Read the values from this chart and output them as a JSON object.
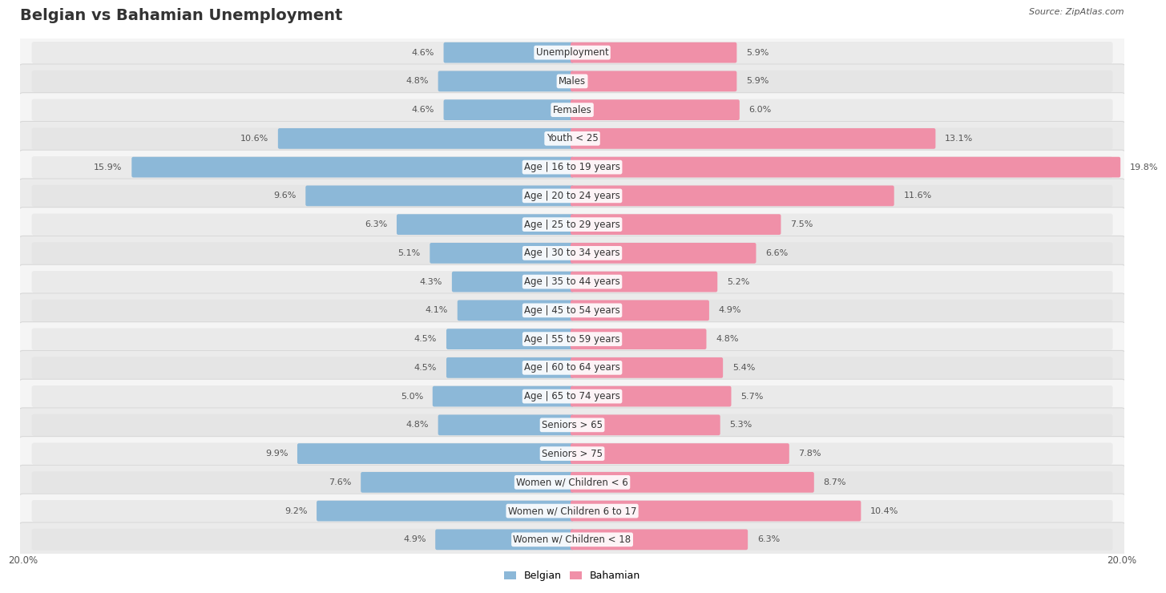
{
  "title": "Belgian vs Bahamian Unemployment",
  "source": "Source: ZipAtlas.com",
  "categories": [
    "Unemployment",
    "Males",
    "Females",
    "Youth < 25",
    "Age | 16 to 19 years",
    "Age | 20 to 24 years",
    "Age | 25 to 29 years",
    "Age | 30 to 34 years",
    "Age | 35 to 44 years",
    "Age | 45 to 54 years",
    "Age | 55 to 59 years",
    "Age | 60 to 64 years",
    "Age | 65 to 74 years",
    "Seniors > 65",
    "Seniors > 75",
    "Women w/ Children < 6",
    "Women w/ Children 6 to 17",
    "Women w/ Children < 18"
  ],
  "belgian_values": [
    4.6,
    4.8,
    4.6,
    10.6,
    15.9,
    9.6,
    6.3,
    5.1,
    4.3,
    4.1,
    4.5,
    4.5,
    5.0,
    4.8,
    9.9,
    7.6,
    9.2,
    4.9
  ],
  "bahamian_values": [
    5.9,
    5.9,
    6.0,
    13.1,
    19.8,
    11.6,
    7.5,
    6.6,
    5.2,
    4.9,
    4.8,
    5.4,
    5.7,
    5.3,
    7.8,
    8.7,
    10.4,
    6.3
  ],
  "belgian_color": "#8cb8d8",
  "bahamian_color": "#f090a8",
  "max_val": 20.0,
  "bg_color": "#ffffff",
  "row_color_odd": "#f0f0f0",
  "row_color_even": "#e0e0e0",
  "row_border_color": "#d0d0d0",
  "bar_track_color": "#e8e8e8",
  "value_color": "#555555",
  "label_fontsize": 8.5,
  "value_fontsize": 8.0,
  "title_fontsize": 14
}
